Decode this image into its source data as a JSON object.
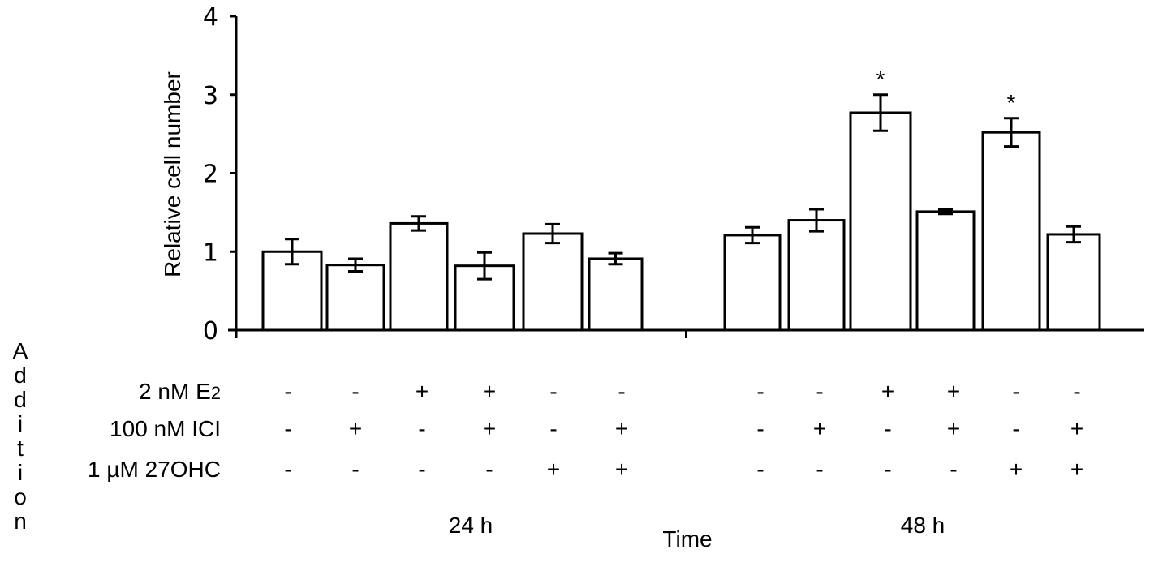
{
  "chart_data": {
    "type": "bar",
    "ylabel": "Relative cell number",
    "xlabel": "Time",
    "ylim": [
      0,
      4
    ],
    "yticks": [
      "0",
      "1",
      "2",
      "3",
      "4"
    ],
    "grid": false,
    "groups": [
      {
        "label": "24 h",
        "values": [
          1.0,
          0.83,
          1.36,
          0.82,
          1.23,
          0.91
        ],
        "errors": [
          0.16,
          0.08,
          0.09,
          0.17,
          0.12,
          0.07
        ],
        "significant": [
          false,
          false,
          false,
          false,
          false,
          false
        ]
      },
      {
        "label": "48 h",
        "values": [
          1.21,
          1.4,
          2.77,
          1.51,
          2.52,
          1.22
        ],
        "errors": [
          0.1,
          0.14,
          0.23,
          0.03,
          0.18,
          0.1
        ],
        "significant": [
          false,
          false,
          true,
          false,
          true,
          false
        ]
      }
    ],
    "significance_mark": "*",
    "bar_color": "#ffffff",
    "edge_color": "#000000",
    "treatment_axis_label": "Addition",
    "treatments": [
      {
        "label": "2 nM E",
        "subscript": "2",
        "signs": [
          "-",
          "-",
          "+",
          "+",
          "-",
          "-",
          "-",
          "-",
          "+",
          "+",
          "-",
          "-"
        ]
      },
      {
        "label": "100 nM ICI",
        "subscript": "",
        "signs": [
          "-",
          "+",
          "-",
          "+",
          "-",
          "+",
          "-",
          "+",
          "-",
          "+",
          "-",
          "+"
        ]
      },
      {
        "label": "1 µM 27OHC",
        "subscript": "",
        "signs": [
          "-",
          "-",
          "-",
          "-",
          "+",
          "+",
          "-",
          "-",
          "-",
          "-",
          "+",
          "+"
        ]
      }
    ]
  }
}
